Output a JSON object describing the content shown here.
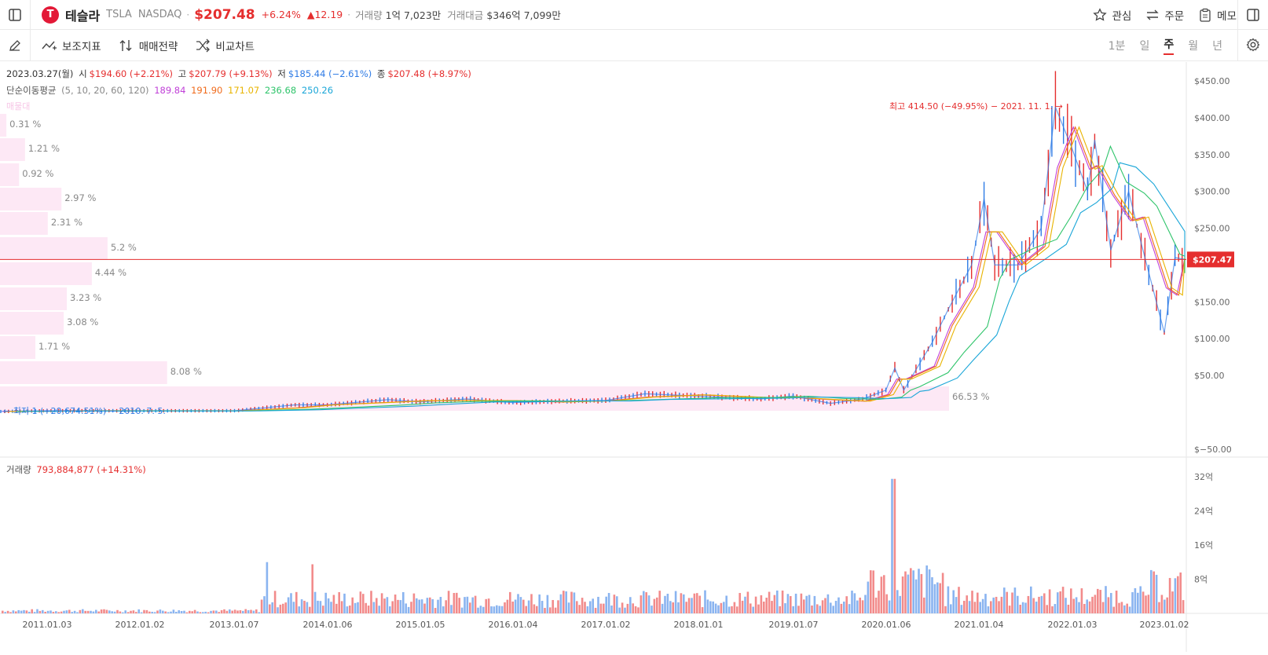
{
  "header": {
    "logo": "T",
    "name": "테슬라",
    "symbol": "TSLA",
    "exchange": "NASDAQ",
    "price": "$207.48",
    "change_pct": "+6.24%",
    "change_abs": "▲12.19",
    "volume_label": "거래량",
    "volume_value": "1억 7,023만",
    "amount_label": "거래대금",
    "amount_value": "$346억 7,099만",
    "actions": [
      "관심",
      "주문",
      "메모"
    ]
  },
  "toolbar": {
    "tools": [
      "보조지표",
      "매매전략",
      "비교차트"
    ],
    "periods": [
      "1분",
      "일",
      "주",
      "월",
      "년"
    ],
    "active_period": "주"
  },
  "ohlc": {
    "date": "2023.03.27(월)",
    "open_label": "시",
    "open": "$194.60 (+2.21%)",
    "high_label": "고",
    "high": "$207.79 (+9.13%)",
    "low_label": "저",
    "low": "$185.44 (−2.61%)",
    "close_label": "종",
    "close": "$207.48 (+8.97%)"
  },
  "ma": {
    "label": "단순이동평균",
    "params": "(5, 10, 20, 60, 120)",
    "values": [
      "189.84",
      "191.90",
      "171.07",
      "236.68",
      "250.26"
    ],
    "colors": [
      "#c040d8",
      "#f06a1a",
      "#e8b400",
      "#2ec46a",
      "#1aa6d8"
    ]
  },
  "volume_info": {
    "label": "거래량",
    "value": "793,884,877 (+14.31%)"
  },
  "annotations": {
    "high": "최고 414.50 (−49.95%) − 2021. 11. 1.",
    "low": "최저 1 (+20,674.51%) − 2010. 7. 5.",
    "current_price": "$207.47",
    "volume_profile_label": "매물대"
  },
  "volume_profile": [
    "0.31 %",
    "1.21 %",
    "0.92 %",
    "2.97 %",
    "2.31 %",
    "5.2 %",
    "4.44 %",
    "3.23 %",
    "3.08 %",
    "1.71 %",
    "8.08 %",
    "66.53 %"
  ],
  "price_axis": [
    "$450.00",
    "$400.00",
    "$350.00",
    "$300.00",
    "$250.00",
    "$150.00",
    "$100.00",
    "$50.00",
    "$−50.00"
  ],
  "volume_axis": [
    "32억",
    "24억",
    "16억",
    "8억"
  ],
  "date_axis": [
    "2011.01.03",
    "2012.01.02",
    "2013.01.07",
    "2014.01.06",
    "2015.01.05",
    "2016.01.04",
    "2017.01.02",
    "2018.01.01",
    "2019.01.07",
    "2020.01.06",
    "2021.01.04",
    "2022.01.03",
    "2023.01.02"
  ],
  "colors": {
    "up": "#e52e2e",
    "down": "#2e7be5",
    "profile": "#fde8f5",
    "grid": "#eeeeee"
  },
  "chart_data": {
    "type": "line",
    "price_points": [
      [
        "2010-07-05",
        1
      ],
      [
        "2011-01-03",
        2
      ],
      [
        "2012-01-02",
        2
      ],
      [
        "2013-01-07",
        2
      ],
      [
        "2013-09-02",
        10
      ],
      [
        "2014-01-06",
        10
      ],
      [
        "2014-09-01",
        17
      ],
      [
        "2015-01-05",
        14
      ],
      [
        "2015-07-06",
        18
      ],
      [
        "2016-01-04",
        13
      ],
      [
        "2016-07-04",
        15
      ],
      [
        "2017-01-02",
        16
      ],
      [
        "2017-06-05",
        25
      ],
      [
        "2018-01-01",
        22
      ],
      [
        "2018-09-03",
        18
      ],
      [
        "2019-01-07",
        22
      ],
      [
        "2019-06-03",
        12
      ],
      [
        "2019-10-07",
        18
      ],
      [
        "2020-01-06",
        30
      ],
      [
        "2020-02-10",
        60
      ],
      [
        "2020-03-16",
        30
      ],
      [
        "2020-07-06",
        95
      ],
      [
        "2020-09-07",
        140
      ],
      [
        "2020-12-07",
        200
      ],
      [
        "2021-01-25",
        290
      ],
      [
        "2021-03-08",
        200
      ],
      [
        "2021-06-07",
        200
      ],
      [
        "2021-09-06",
        250
      ],
      [
        "2021-11-01",
        414.5
      ],
      [
        "2022-01-03",
        360
      ],
      [
        "2022-03-07",
        300
      ],
      [
        "2022-04-04",
        370
      ],
      [
        "2022-06-06",
        220
      ],
      [
        "2022-08-15",
        300
      ],
      [
        "2022-10-03",
        230
      ],
      [
        "2023-01-02",
        108
      ],
      [
        "2023-02-13",
        210
      ],
      [
        "2023-03-27",
        207.48
      ]
    ],
    "volume_peak_label": "32억",
    "ylim": [
      -50,
      450
    ]
  }
}
